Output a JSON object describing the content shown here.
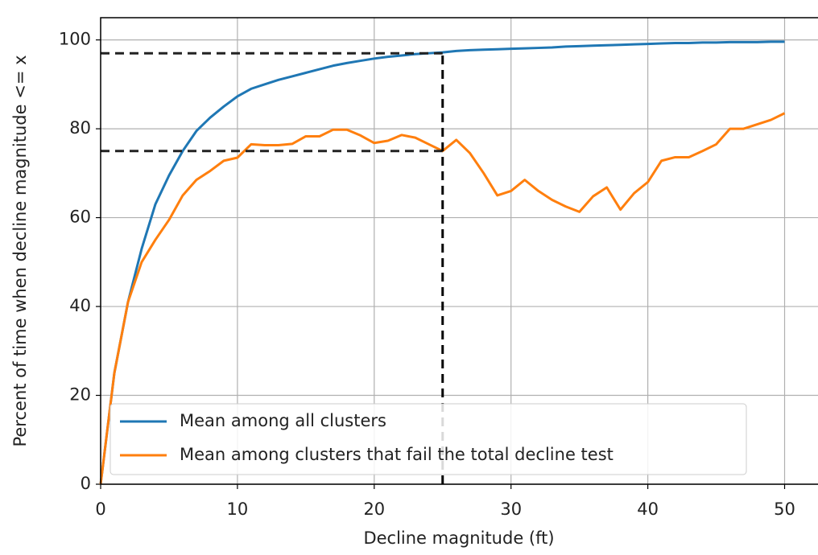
{
  "chart_data": {
    "type": "line",
    "xlabel": "Decline magnitude (ft)",
    "ylabel": "Percent of time when decline magnitude <= x",
    "x": [
      0,
      1,
      2,
      3,
      4,
      5,
      6,
      7,
      8,
      9,
      10,
      11,
      12,
      13,
      14,
      15,
      16,
      17,
      18,
      19,
      20,
      21,
      22,
      23,
      24,
      25,
      26,
      27,
      28,
      29,
      30,
      31,
      32,
      33,
      34,
      35,
      36,
      37,
      38,
      39,
      40,
      41,
      42,
      43,
      44,
      45,
      46,
      47,
      48,
      49,
      50
    ],
    "series": [
      {
        "name": "Mean among all clusters",
        "color": "#1f77b4",
        "values": [
          0,
          25,
          41,
          53,
          63,
          69.5,
          75,
          79.5,
          82.5,
          85,
          87.3,
          89,
          90,
          91,
          91.8,
          92.6,
          93.4,
          94.2,
          94.8,
          95.3,
          95.8,
          96.2,
          96.5,
          96.8,
          97,
          97.2,
          97.5,
          97.7,
          97.8,
          97.9,
          98,
          98.1,
          98.2,
          98.3,
          98.5,
          98.6,
          98.7,
          98.8,
          98.9,
          99,
          99.1,
          99.2,
          99.3,
          99.3,
          99.4,
          99.4,
          99.5,
          99.5,
          99.5,
          99.6,
          99.6
        ]
      },
      {
        "name": "Mean among clusters that fail the total decline test",
        "color": "#ff7f0e",
        "values": [
          0,
          25,
          41,
          50,
          55,
          59.5,
          65,
          68.5,
          70.5,
          72.8,
          73.5,
          76.5,
          76.3,
          76.3,
          76.6,
          78.3,
          78.3,
          79.8,
          79.8,
          78.5,
          76.8,
          77.3,
          78.6,
          78,
          76.5,
          75,
          77.5,
          74.5,
          70,
          65,
          66,
          68.5,
          66,
          64,
          62.5,
          61.3,
          64.8,
          66.8,
          61.8,
          65.5,
          68,
          72.8,
          73.6,
          73.6,
          75,
          76.5,
          80,
          80,
          81,
          82,
          83.5
        ]
      }
    ],
    "guides": {
      "x": 25,
      "y": [
        97,
        75
      ]
    },
    "xlim": [
      0,
      52.5
    ],
    "ylim": [
      0,
      105
    ],
    "xticks": [
      0,
      10,
      20,
      30,
      40,
      50
    ],
    "yticks": [
      0,
      20,
      40,
      60,
      80,
      100
    ],
    "grid": true,
    "legend": "lower left"
  }
}
